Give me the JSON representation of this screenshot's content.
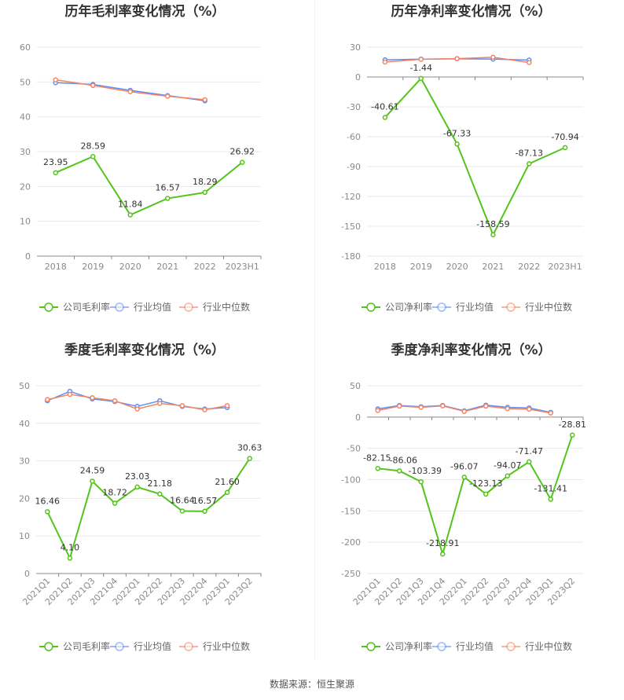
{
  "charts": [
    {
      "title": "历年毛利率变化情况（%）",
      "type": "line",
      "categories": [
        "2018",
        "2019",
        "2020",
        "2021",
        "2022",
        "2023H1"
      ],
      "yticks": [
        0,
        10,
        20,
        30,
        40,
        50,
        60
      ],
      "ylim": [
        0,
        60
      ],
      "rotate_labels": false,
      "series": [
        {
          "name": "公司毛利率",
          "color": "#52c41a",
          "values": [
            23.95,
            28.59,
            11.84,
            16.57,
            18.29,
            26.92
          ],
          "show_labels": true
        },
        {
          "name": "行业均值",
          "color": "#5b8ff9",
          "values": [
            49.8,
            49.3,
            47.6,
            46.1,
            44.6,
            null
          ],
          "show_labels": false
        },
        {
          "name": "行业中位数",
          "color": "#f4845f",
          "values": [
            50.6,
            49.0,
            47.2,
            45.9,
            44.9,
            null
          ],
          "show_labels": false
        }
      ]
    },
    {
      "title": "历年净利率变化情况（%）",
      "type": "line",
      "categories": [
        "2018",
        "2019",
        "2020",
        "2021",
        "2022",
        "2023H1"
      ],
      "yticks": [
        30,
        0,
        -30,
        -60,
        -90,
        -120,
        -150,
        -180
      ],
      "ylim": [
        -180,
        30
      ],
      "rotate_labels": false,
      "series": [
        {
          "name": "公司净利率",
          "color": "#52c41a",
          "values": [
            -40.61,
            -1.44,
            -67.33,
            -158.59,
            -87.13,
            -70.94
          ],
          "show_labels": true
        },
        {
          "name": "行业均值",
          "color": "#5b8ff9",
          "values": [
            17.2,
            18.0,
            18.3,
            18.0,
            17.0,
            null
          ],
          "show_labels": false
        },
        {
          "name": "行业中位数",
          "color": "#f4845f",
          "values": [
            15.0,
            17.8,
            18.5,
            19.8,
            14.5,
            null
          ],
          "show_labels": false
        }
      ]
    },
    {
      "title": "季度毛利率变化情况（%）",
      "type": "line",
      "categories": [
        "2021Q1",
        "2021Q2",
        "2021Q3",
        "2021Q4",
        "2022Q1",
        "2022Q2",
        "2022Q3",
        "2022Q4",
        "2023Q1",
        "2023Q2"
      ],
      "yticks": [
        0,
        10,
        20,
        30,
        40,
        50
      ],
      "ylim": [
        0,
        50
      ],
      "rotate_labels": true,
      "series": [
        {
          "name": "公司毛利率",
          "color": "#52c41a",
          "values": [
            16.46,
            4.1,
            24.59,
            18.72,
            23.03,
            21.18,
            16.64,
            16.57,
            21.6,
            30.63
          ],
          "show_labels": true
        },
        {
          "name": "行业均值",
          "color": "#5b8ff9",
          "values": [
            46.0,
            48.5,
            46.5,
            45.8,
            44.5,
            46.0,
            44.5,
            43.8,
            44.2,
            null
          ],
          "show_labels": false
        },
        {
          "name": "行业中位数",
          "color": "#f4845f",
          "values": [
            46.3,
            47.7,
            46.8,
            46.0,
            43.8,
            45.3,
            44.7,
            43.6,
            44.7,
            null
          ],
          "show_labels": false
        }
      ]
    },
    {
      "title": "季度净利率变化情况（%）",
      "type": "line",
      "categories": [
        "2021Q1",
        "2021Q2",
        "2021Q3",
        "2021Q4",
        "2022Q1",
        "2022Q2",
        "2022Q3",
        "2022Q4",
        "2023Q1",
        "2023Q2"
      ],
      "yticks": [
        50,
        0,
        -50,
        -100,
        -150,
        -200,
        -250
      ],
      "ylim": [
        -250,
        50
      ],
      "rotate_labels": true,
      "series": [
        {
          "name": "公司净利率",
          "color": "#52c41a",
          "values": [
            -82.15,
            -86.06,
            -103.39,
            -218.91,
            -96.07,
            -123.13,
            -94.07,
            -71.47,
            -131.41,
            -28.81
          ],
          "show_labels": true
        },
        {
          "name": "行业均值",
          "color": "#5b8ff9",
          "values": [
            13.0,
            18.5,
            16.5,
            18.5,
            10.0,
            19.0,
            15.5,
            14.5,
            7.5,
            null
          ],
          "show_labels": false
        },
        {
          "name": "行业中位数",
          "color": "#f4845f",
          "values": [
            10.5,
            17.5,
            15.5,
            17.8,
            9.0,
            17.5,
            13.5,
            12.5,
            6.5,
            null
          ],
          "show_labels": false
        }
      ]
    }
  ],
  "source_text": "数据来源：恒生聚源"
}
